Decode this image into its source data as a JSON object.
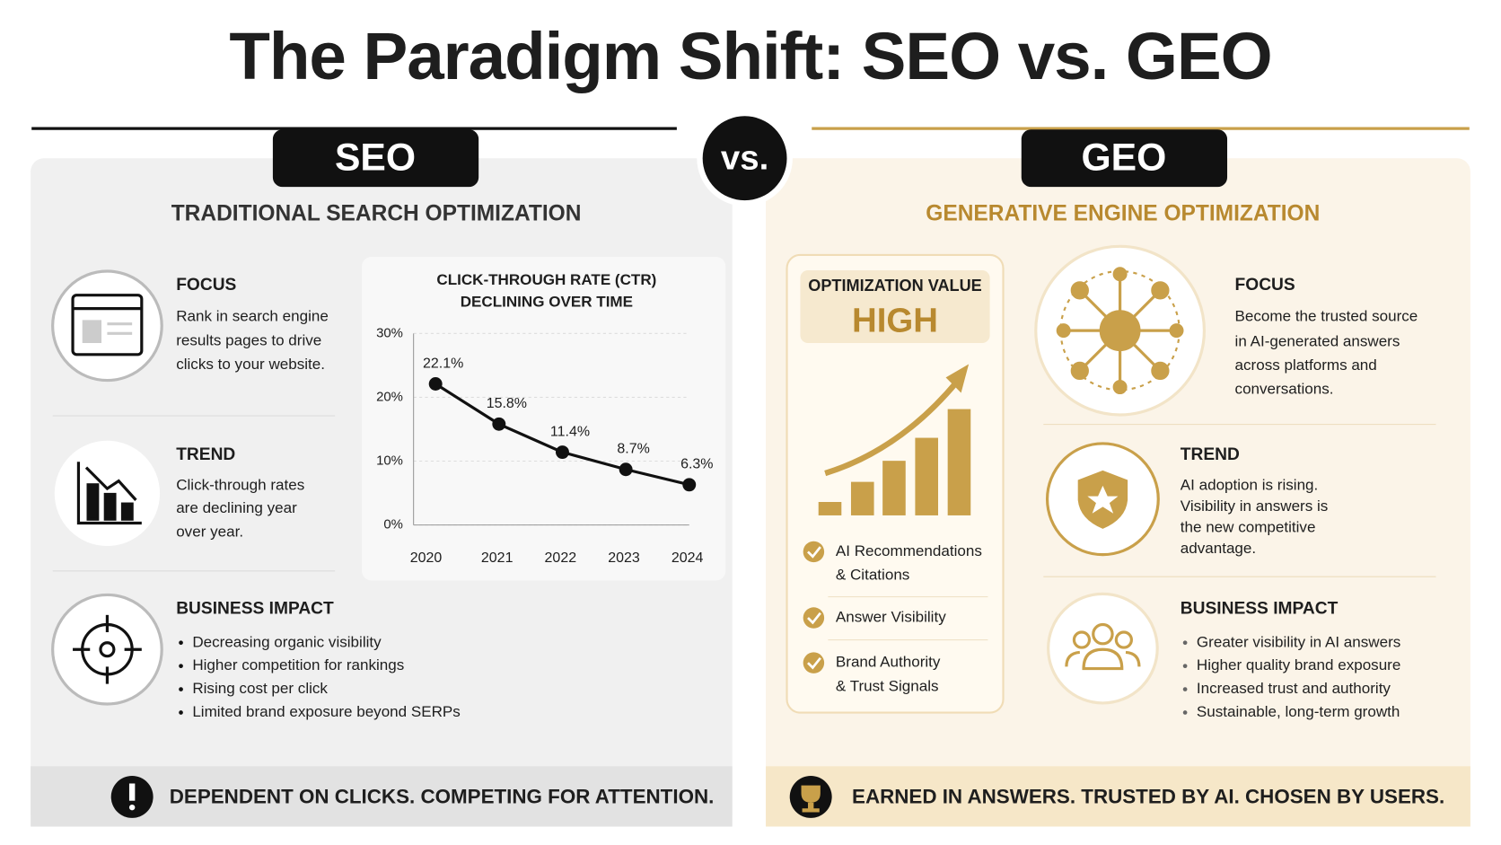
{
  "title": "The Paradigm Shift: SEO vs. GEO",
  "vs": "vs.",
  "seo": {
    "badge": "SEO",
    "subtitle": "TRADITIONAL SEARCH OPTIMIZATION",
    "focus": {
      "heading": "FOCUS",
      "lines": [
        "Rank in search engine",
        "results pages to drive",
        "clicks to your website."
      ]
    },
    "trend": {
      "heading": "TREND",
      "lines": [
        "Click-through rates",
        "are declining year",
        "over year."
      ]
    },
    "impact": {
      "heading": "BUSINESS IMPACT",
      "bullets": [
        "Decreasing organic visibility",
        "Higher competition for rankings",
        "Rising cost per click",
        "Limited brand exposure beyond SERPs"
      ]
    },
    "footer": "DEPENDENT ON CLICKS. COMPETING FOR ATTENTION."
  },
  "geo": {
    "badge": "GEO",
    "subtitle": "GENERATIVE ENGINE OPTIMIZATION",
    "value_card": {
      "label": "OPTIMIZATION VALUE",
      "value": "HIGH",
      "checks": [
        [
          "AI Recommendations",
          "& Citations"
        ],
        [
          "Answer Visibility"
        ],
        [
          "Brand Authority",
          "& Trust Signals"
        ]
      ]
    },
    "focus": {
      "heading": "FOCUS",
      "lines": [
        "Become the trusted source",
        "in AI-generated answers",
        "across platforms and",
        "conversations."
      ]
    },
    "trend": {
      "heading": "TREND",
      "lines": [
        "AI adoption is rising.",
        "Visibility in answers is",
        "the new competitive",
        "advantage."
      ]
    },
    "impact": {
      "heading": "BUSINESS IMPACT",
      "bullets": [
        "Greater visibility in AI answers",
        "Higher quality brand exposure",
        "Increased trust and authority",
        "Sustainable, long-term growth"
      ]
    },
    "footer": "EARNED IN ANSWERS. TRUSTED BY AI. CHOSEN BY USERS."
  },
  "chart_data": {
    "type": "line",
    "title": "CLICK-THROUGH RATE (CTR)",
    "subtitle": "DECLINING OVER TIME",
    "categories": [
      "2020",
      "2021",
      "2022",
      "2023",
      "2024"
    ],
    "values": [
      22.1,
      15.8,
      11.4,
      8.7,
      6.3
    ],
    "value_labels": [
      "22.1%",
      "15.8%",
      "11.4%",
      "8.7%",
      "6.3%"
    ],
    "color": "#111111",
    "ylim": [
      0,
      30
    ],
    "yticks": [
      {
        "value": 0,
        "label": "0%"
      },
      {
        "value": 10,
        "label": "10%"
      },
      {
        "value": 20,
        "label": "20%"
      },
      {
        "value": 30,
        "label": "30%"
      }
    ],
    "grid": true
  }
}
